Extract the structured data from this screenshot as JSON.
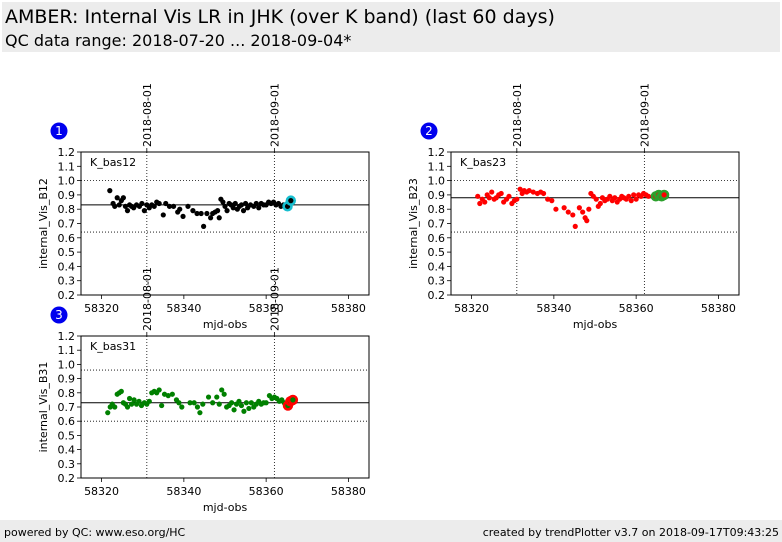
{
  "header": {
    "title": "AMBER: Internal Vis LR in JHK (over K band) (last 60 days)",
    "subtitle": "QC data range: 2018-07-20 ... 2018-09-04*"
  },
  "footer": {
    "left": "powered by QC: www.eso.org/HC",
    "right": "created by trendPlotter v3.7 on 2018-09-17T09:43:25"
  },
  "chart_data": [
    {
      "type": "scatter",
      "panel_number": "1",
      "tag": "K_bas12",
      "xlabel": "mjd-obs",
      "ylabel": "internal_Vis_B12",
      "xlim": [
        58315,
        58385
      ],
      "ylim": [
        0.2,
        1.2
      ],
      "x_ticks": [
        58320,
        58340,
        58360,
        58380
      ],
      "y_ticks": [
        0.2,
        0.3,
        0.4,
        0.5,
        0.6,
        0.7,
        0.8,
        0.9,
        1.0,
        1.1,
        1.2
      ],
      "date_ticks": [
        {
          "label": "2018-08-01",
          "mjd": 58331
        },
        {
          "label": "2018-09-01",
          "mjd": 58362
        }
      ],
      "reference_line": 0.83,
      "dotted_lines": [
        0.64,
        1.0
      ],
      "point_color": "#000000",
      "latest_color": "#17becf",
      "points": [
        [
          58322.0,
          0.93
        ],
        [
          58322.8,
          0.84
        ],
        [
          58323.2,
          0.82
        ],
        [
          58323.8,
          0.88
        ],
        [
          58324.3,
          0.83
        ],
        [
          58324.8,
          0.86
        ],
        [
          58325.3,
          0.88
        ],
        [
          58325.8,
          0.82
        ],
        [
          58326.3,
          0.79
        ],
        [
          58326.8,
          0.83
        ],
        [
          58327.3,
          0.82
        ],
        [
          58327.8,
          0.81
        ],
        [
          58328.5,
          0.83
        ],
        [
          58329.2,
          0.82
        ],
        [
          58329.8,
          0.84
        ],
        [
          58330.4,
          0.79
        ],
        [
          58331.0,
          0.83
        ],
        [
          58331.6,
          0.81
        ],
        [
          58332.2,
          0.83
        ],
        [
          58332.8,
          0.82
        ],
        [
          58333.4,
          0.85
        ],
        [
          58334.0,
          0.84
        ],
        [
          58335.0,
          0.76
        ],
        [
          58335.6,
          0.84
        ],
        [
          58336.5,
          0.82
        ],
        [
          58337.5,
          0.82
        ],
        [
          58338.5,
          0.78
        ],
        [
          58339.0,
          0.8
        ],
        [
          58339.8,
          0.75
        ],
        [
          58341.0,
          0.82
        ],
        [
          58342.2,
          0.79
        ],
        [
          58343.2,
          0.77
        ],
        [
          58344.2,
          0.77
        ],
        [
          58344.8,
          0.68
        ],
        [
          58345.6,
          0.77
        ],
        [
          58346.5,
          0.74
        ],
        [
          58347.0,
          0.77
        ],
        [
          58347.6,
          0.78
        ],
        [
          58348.2,
          0.79
        ],
        [
          58348.6,
          0.74
        ],
        [
          58349.0,
          0.87
        ],
        [
          58349.5,
          0.85
        ],
        [
          58350.0,
          0.82
        ],
        [
          58350.5,
          0.79
        ],
        [
          58351.0,
          0.84
        ],
        [
          58351.5,
          0.83
        ],
        [
          58352.0,
          0.81
        ],
        [
          58352.5,
          0.84
        ],
        [
          58353.0,
          0.8
        ],
        [
          58353.5,
          0.82
        ],
        [
          58354.0,
          0.83
        ],
        [
          58354.5,
          0.79
        ],
        [
          58355.0,
          0.84
        ],
        [
          58355.5,
          0.81
        ],
        [
          58356.2,
          0.83
        ],
        [
          58357.0,
          0.82
        ],
        [
          58357.6,
          0.84
        ],
        [
          58358.2,
          0.81
        ],
        [
          58358.8,
          0.84
        ],
        [
          58359.4,
          0.83
        ],
        [
          58360.0,
          0.83
        ],
        [
          58360.6,
          0.85
        ],
        [
          58361.2,
          0.84
        ],
        [
          58361.8,
          0.85
        ],
        [
          58362.4,
          0.83
        ],
        [
          58363.0,
          0.84
        ],
        [
          58363.6,
          0.82
        ],
        [
          58364.2,
          0.83
        ]
      ],
      "latest": [
        [
          58365.2,
          0.82
        ],
        [
          58366.0,
          0.86
        ]
      ]
    },
    {
      "type": "scatter",
      "panel_number": "2",
      "tag": "K_bas23",
      "xlabel": "mjd-obs",
      "ylabel": "internal_Vis_B23",
      "xlim": [
        58315,
        58385
      ],
      "ylim": [
        0.2,
        1.2
      ],
      "x_ticks": [
        58320,
        58340,
        58360,
        58380
      ],
      "y_ticks": [
        0.2,
        0.3,
        0.4,
        0.5,
        0.6,
        0.7,
        0.8,
        0.9,
        1.0,
        1.1,
        1.2
      ],
      "date_ticks": [
        {
          "label": "2018-08-01",
          "mjd": 58331
        },
        {
          "label": "2018-09-01",
          "mjd": 58362
        }
      ],
      "reference_line": 0.88,
      "dotted_lines": [
        0.64,
        1.0
      ],
      "point_color": "#ff0000",
      "latest_color": "#2ca02c",
      "points": [
        [
          58321.5,
          0.89
        ],
        [
          58322.0,
          0.84
        ],
        [
          58322.6,
          0.87
        ],
        [
          58323.2,
          0.85
        ],
        [
          58323.8,
          0.9
        ],
        [
          58324.3,
          0.88
        ],
        [
          58324.9,
          0.92
        ],
        [
          58325.5,
          0.87
        ],
        [
          58326.0,
          0.88
        ],
        [
          58326.6,
          0.9
        ],
        [
          58327.2,
          0.91
        ],
        [
          58327.8,
          0.85
        ],
        [
          58328.5,
          0.87
        ],
        [
          58329.1,
          0.89
        ],
        [
          58329.8,
          0.84
        ],
        [
          58330.4,
          0.86
        ],
        [
          58331.0,
          0.87
        ],
        [
          58331.8,
          0.94
        ],
        [
          58332.3,
          0.91
        ],
        [
          58332.8,
          0.93
        ],
        [
          58333.4,
          0.92
        ],
        [
          58334.0,
          0.93
        ],
        [
          58335.0,
          0.92
        ],
        [
          58336.0,
          0.91
        ],
        [
          58336.8,
          0.92
        ],
        [
          58337.5,
          0.91
        ],
        [
          58338.5,
          0.87
        ],
        [
          58339.5,
          0.86
        ],
        [
          58340.5,
          0.8
        ],
        [
          58342.5,
          0.81
        ],
        [
          58343.5,
          0.78
        ],
        [
          58344.6,
          0.76
        ],
        [
          58345.2,
          0.68
        ],
        [
          58346.2,
          0.81
        ],
        [
          58347.0,
          0.78
        ],
        [
          58347.6,
          0.74
        ],
        [
          58348.0,
          0.72
        ],
        [
          58348.5,
          0.8
        ],
        [
          58349.0,
          0.91
        ],
        [
          58349.6,
          0.89
        ],
        [
          58350.3,
          0.87
        ],
        [
          58350.8,
          0.82
        ],
        [
          58351.3,
          0.84
        ],
        [
          58351.8,
          0.88
        ],
        [
          58352.4,
          0.86
        ],
        [
          58353.0,
          0.87
        ],
        [
          58353.6,
          0.89
        ],
        [
          58354.2,
          0.86
        ],
        [
          58354.8,
          0.88
        ],
        [
          58355.4,
          0.85
        ],
        [
          58356.0,
          0.87
        ],
        [
          58356.5,
          0.89
        ],
        [
          58357.0,
          0.88
        ],
        [
          58357.6,
          0.87
        ],
        [
          58358.2,
          0.89
        ],
        [
          58358.8,
          0.86
        ],
        [
          58359.4,
          0.9
        ],
        [
          58360.0,
          0.87
        ],
        [
          58360.6,
          0.9
        ],
        [
          58361.2,
          0.89
        ],
        [
          58361.8,
          0.91
        ],
        [
          58362.4,
          0.9
        ],
        [
          58363.0,
          0.89
        ]
      ],
      "latest": [
        [
          58364.8,
          0.89
        ],
        [
          58365.5,
          0.9
        ],
        [
          58366.2,
          0.89
        ],
        [
          58366.8,
          0.9
        ]
      ]
    },
    {
      "type": "scatter",
      "panel_number": "3",
      "tag": "K_bas31",
      "xlabel": "mjd-obs",
      "ylabel": "internal_Vis_B31",
      "xlim": [
        58315,
        58385
      ],
      "ylim": [
        0.2,
        1.2
      ],
      "x_ticks": [
        58320,
        58340,
        58360,
        58380
      ],
      "y_ticks": [
        0.2,
        0.3,
        0.4,
        0.5,
        0.6,
        0.7,
        0.8,
        0.9,
        1.0,
        1.1,
        1.2
      ],
      "date_ticks": [
        {
          "label": "2018-08-01",
          "mjd": 58331
        },
        {
          "label": "2018-09-01",
          "mjd": 58362
        }
      ],
      "reference_line": 0.73,
      "dotted_lines": [
        0.6,
        0.96
      ],
      "point_color": "#008000",
      "latest_color": "#ff0000",
      "points": [
        [
          58321.5,
          0.66
        ],
        [
          58322.1,
          0.7
        ],
        [
          58322.6,
          0.72
        ],
        [
          58323.2,
          0.7
        ],
        [
          58323.8,
          0.79
        ],
        [
          58324.3,
          0.8
        ],
        [
          58324.8,
          0.81
        ],
        [
          58325.3,
          0.73
        ],
        [
          58325.8,
          0.72
        ],
        [
          58326.3,
          0.7
        ],
        [
          58326.8,
          0.76
        ],
        [
          58327.3,
          0.72
        ],
        [
          58327.9,
          0.75
        ],
        [
          58328.5,
          0.72
        ],
        [
          58329.1,
          0.74
        ],
        [
          58329.7,
          0.71
        ],
        [
          58330.4,
          0.73
        ],
        [
          58331.0,
          0.72
        ],
        [
          58331.6,
          0.74
        ],
        [
          58332.2,
          0.8
        ],
        [
          58332.8,
          0.81
        ],
        [
          58333.4,
          0.8
        ],
        [
          58334.0,
          0.82
        ],
        [
          58334.6,
          0.71
        ],
        [
          58335.3,
          0.79
        ],
        [
          58336.2,
          0.78
        ],
        [
          58337.2,
          0.79
        ],
        [
          58338.2,
          0.75
        ],
        [
          58338.8,
          0.73
        ],
        [
          58339.5,
          0.7
        ],
        [
          58341.5,
          0.73
        ],
        [
          58342.5,
          0.73
        ],
        [
          58343.3,
          0.7
        ],
        [
          58343.9,
          0.66
        ],
        [
          58344.6,
          0.72
        ],
        [
          58346.0,
          0.77
        ],
        [
          58347.0,
          0.73
        ],
        [
          58348.0,
          0.77
        ],
        [
          58348.6,
          0.72
        ],
        [
          58349.2,
          0.82
        ],
        [
          58349.8,
          0.79
        ],
        [
          58350.4,
          0.7
        ],
        [
          58351.0,
          0.71
        ],
        [
          58351.6,
          0.73
        ],
        [
          58352.2,
          0.68
        ],
        [
          58352.8,
          0.72
        ],
        [
          58353.4,
          0.74
        ],
        [
          58354.0,
          0.71
        ],
        [
          58354.6,
          0.67
        ],
        [
          58355.2,
          0.73
        ],
        [
          58355.8,
          0.69
        ],
        [
          58356.4,
          0.73
        ],
        [
          58357.0,
          0.7
        ],
        [
          58357.6,
          0.72
        ],
        [
          58358.2,
          0.74
        ],
        [
          58358.8,
          0.72
        ],
        [
          58359.4,
          0.73
        ],
        [
          58360.0,
          0.73
        ],
        [
          58360.8,
          0.78
        ],
        [
          58361.4,
          0.76
        ],
        [
          58362.0,
          0.77
        ],
        [
          58362.6,
          0.76
        ],
        [
          58363.2,
          0.74
        ],
        [
          58363.8,
          0.75
        ],
        [
          58364.4,
          0.73
        ]
      ],
      "latest": [
        [
          58365.3,
          0.71
        ],
        [
          58365.9,
          0.74
        ],
        [
          58366.5,
          0.75
        ]
      ]
    }
  ]
}
